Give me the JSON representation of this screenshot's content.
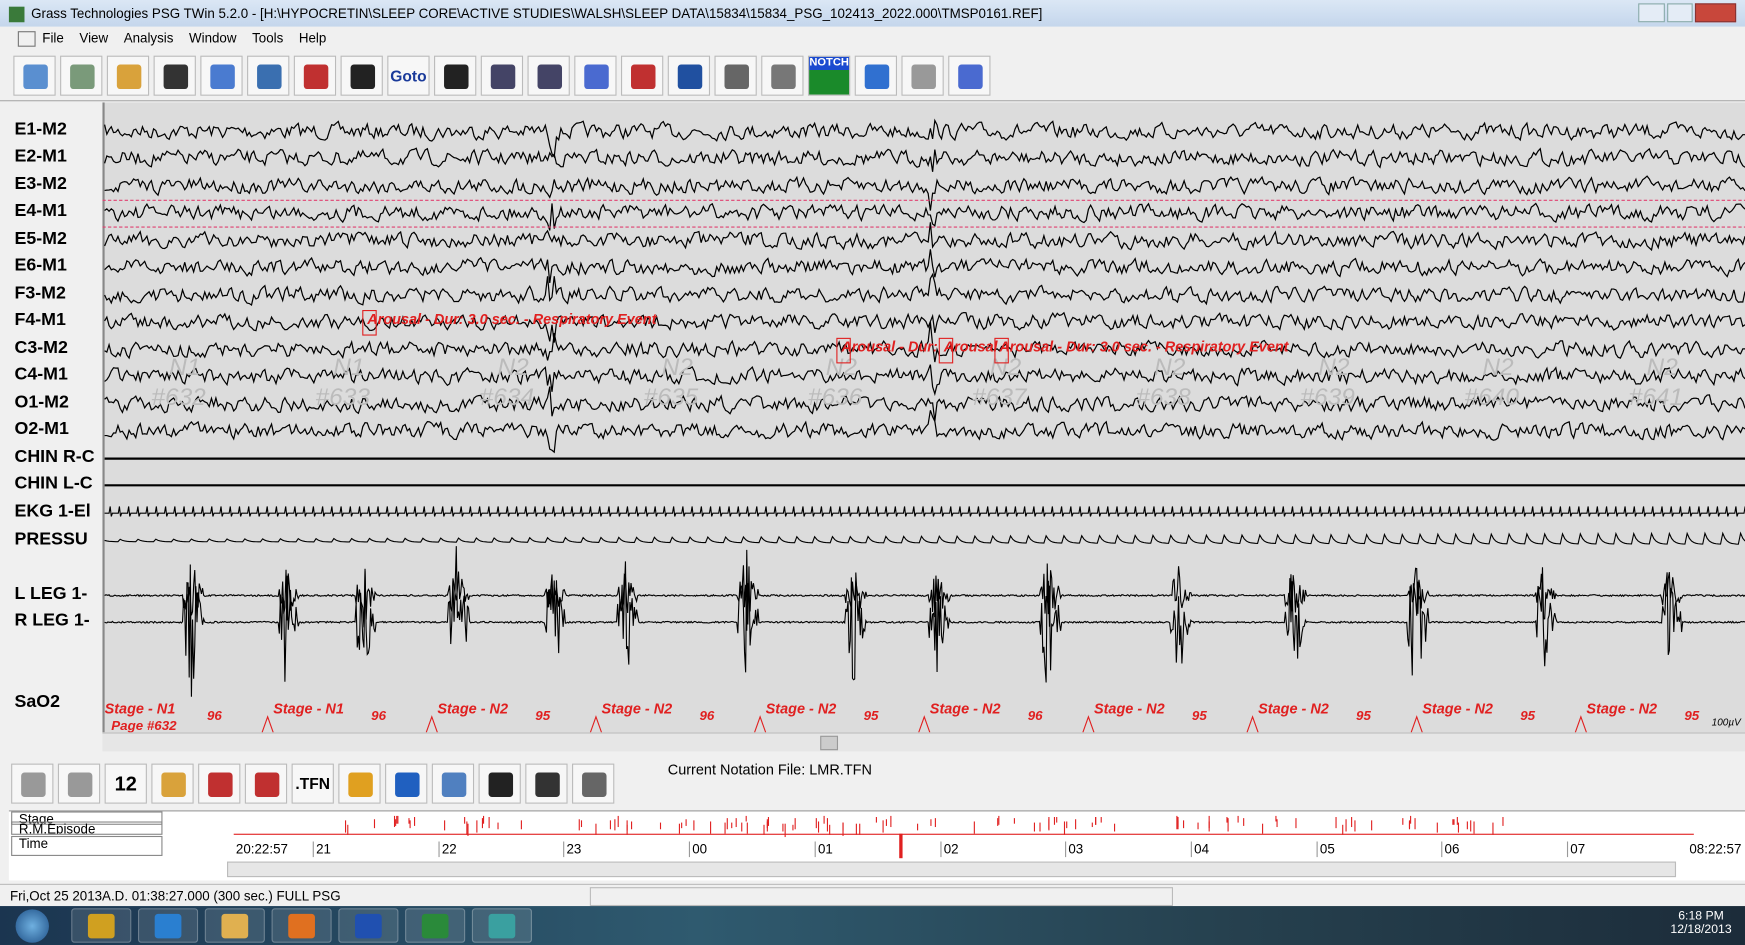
{
  "window": {
    "title": "Grass Technologies PSG TWin 5.2.0 - [H:\\HYPOCRETIN\\SLEEP CORE\\ACTIVE STUDIES\\WALSH\\SLEEP DATA\\15834\\15834_PSG_102413_2022.000\\TMSP0161.REF]"
  },
  "menu": [
    "File",
    "View",
    "Analysis",
    "Window",
    "Tools",
    "Help"
  ],
  "toolbar": {
    "goto": "Goto",
    "notch": "NOTCH"
  },
  "channels": [
    "E1-M2",
    "E2-M1",
    "E3-M2",
    "E4-M1",
    "E5-M2",
    "E6-M1",
    "F3-M2",
    "F4-M1",
    "C3-M2",
    "C4-M1",
    "O1-M2",
    "O2-M1",
    "CHIN R-C",
    "CHIN L-C",
    "EKG 1-El",
    "PRESSU",
    "L LEG 1-",
    "R LEG 1-",
    "SaO2"
  ],
  "annotations": [
    "Arousal - Dur:  3.0 sec. - Respiratory Event",
    "Arousal - Dur:",
    "Arousal",
    "Arousal - Dur:  3.0 sec. - Respiratory Event"
  ],
  "epochs": [
    {
      "stage": "Stage - N1",
      "watermark": "N1",
      "number": "#632",
      "sao2": "96"
    },
    {
      "stage": "Stage - N1",
      "watermark": "N1",
      "number": "#633",
      "sao2": "96"
    },
    {
      "stage": "Stage - N2",
      "watermark": "N2",
      "number": "#634",
      "sao2": "95"
    },
    {
      "stage": "Stage - N2",
      "watermark": "N2",
      "number": "#635",
      "sao2": "96"
    },
    {
      "stage": "Stage - N2",
      "watermark": "N2",
      "number": "#636",
      "sao2": "95"
    },
    {
      "stage": "Stage - N2",
      "watermark": "N2",
      "number": "#637",
      "sao2": "96"
    },
    {
      "stage": "Stage - N2",
      "watermark": "N2",
      "number": "#638",
      "sao2": "95"
    },
    {
      "stage": "Stage - N2",
      "watermark": "N2",
      "number": "#639",
      "sao2": "95"
    },
    {
      "stage": "Stage - N2",
      "watermark": "N2",
      "number": "#640",
      "sao2": "95"
    },
    {
      "stage": "Stage - N2",
      "watermark": "N2",
      "number": "#641",
      "sao2": "95"
    }
  ],
  "page_label": "Page #632",
  "scale_label": "100µV",
  "bottom": {
    "page_count": "12",
    "tfn": ".TFN",
    "notation": "Current Notation File: LMR.TFN"
  },
  "timeline": {
    "rows": [
      "Stage",
      "R.M.Episode",
      "Time"
    ],
    "start": "20:22:57",
    "end": "08:22:57",
    "hours": [
      "21",
      "22",
      "23",
      "00",
      "01",
      "02",
      "03",
      "04",
      "05",
      "06",
      "07"
    ]
  },
  "status": "Fri,Oct 25 2013A.D.  01:38:27.000 (300 sec.) FULL PSG",
  "clock": {
    "time": "6:18 PM",
    "date": "12/18/2013"
  }
}
